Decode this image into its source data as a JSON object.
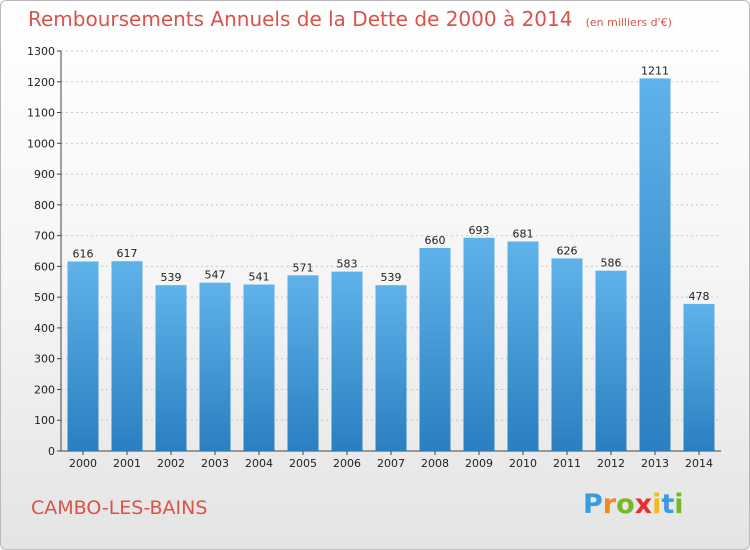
{
  "title": "Remboursements Annuels de la Dette de 2000 à 2014",
  "subtitle": "(en milliers d'€)",
  "commune": "CAMBO-LES-BAINS",
  "brand": {
    "letters": [
      "P",
      "r",
      "o",
      "x",
      "i",
      "t",
      "i"
    ],
    "colors": [
      "#3b9be0",
      "#f08a1c",
      "#78b72a",
      "#e8312f",
      "#f2b91c",
      "#3b9be0",
      "#78b72a"
    ]
  },
  "colors": {
    "bar_top": "#5fb2ea",
    "bar_bottom": "#2b7fc0",
    "title": "#d9534a",
    "grid": "#c8c8c8"
  },
  "chart_data": {
    "type": "bar",
    "title": "Remboursements Annuels de la Dette de 2000 à 2014",
    "subtitle": "(en milliers d'€)",
    "categories": [
      "2000",
      "2001",
      "2002",
      "2003",
      "2004",
      "2005",
      "2006",
      "2007",
      "2008",
      "2009",
      "2010",
      "2011",
      "2012",
      "2013",
      "2014"
    ],
    "values": [
      616,
      617,
      539,
      547,
      541,
      571,
      583,
      539,
      660,
      693,
      681,
      626,
      586,
      1211,
      478
    ],
    "ylim": [
      0,
      1300
    ],
    "yticks": [
      0,
      100,
      200,
      300,
      400,
      500,
      600,
      700,
      800,
      900,
      1000,
      1100,
      1200,
      1300
    ],
    "grid": "horizontal dotted",
    "legend": "none"
  }
}
